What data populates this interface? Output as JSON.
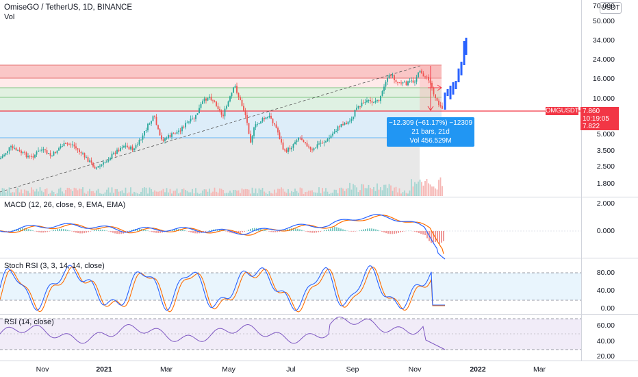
{
  "header": {
    "title": "OmiseGO / TetherUS, 1D, BINANCE",
    "vol_label": "Vol",
    "currency_button": "USDT"
  },
  "price_axis": {
    "labels": [
      "70.000",
      "50.000",
      "34.000",
      "24.000",
      "16.000",
      "10.000",
      "5.000",
      "3.500",
      "2.500",
      "1.800"
    ]
  },
  "symbol_tag": "OMGUSDT",
  "price_box": {
    "price": "7.860",
    "countdown": "10:19:05",
    "low": "7.822"
  },
  "measure_tool": {
    "change": "−12.309 (−61.17%) −12309",
    "bars": "21 bars, 21d",
    "volume": "Vol 456.529M"
  },
  "panes": {
    "macd": {
      "label": "MACD (12, 26, close, 9, EMA, EMA)",
      "axis": [
        "2.000",
        "0.000"
      ]
    },
    "stoch_rsi": {
      "label": "Stoch RSI (3, 3, 14, 14, close)",
      "axis": [
        "80.00",
        "40.00",
        "0.00"
      ]
    },
    "rsi": {
      "label": "RSI (14, close)",
      "axis": [
        "60.00",
        "40.00",
        "20.00"
      ]
    }
  },
  "time_axis": [
    {
      "label": "Nov",
      "bold": false
    },
    {
      "label": "2021",
      "bold": true
    },
    {
      "label": "Mar",
      "bold": false
    },
    {
      "label": "May",
      "bold": false
    },
    {
      "label": "Jul",
      "bold": false
    },
    {
      "label": "Sep",
      "bold": false
    },
    {
      "label": "Nov",
      "bold": false
    },
    {
      "label": "2022",
      "bold": true
    },
    {
      "label": "Mar",
      "bold": false
    }
  ],
  "colors": {
    "up": "#26a69a",
    "down": "#ef5350",
    "projection": "#2962ff",
    "macd_line": "#2962ff",
    "signal_line": "#ff6d00",
    "stoch_k": "#2962ff",
    "stoch_d": "#ff6d00",
    "rsi_line": "#7e57c2",
    "accent_red": "#f23645",
    "measure_blue": "#2196f3"
  }
}
